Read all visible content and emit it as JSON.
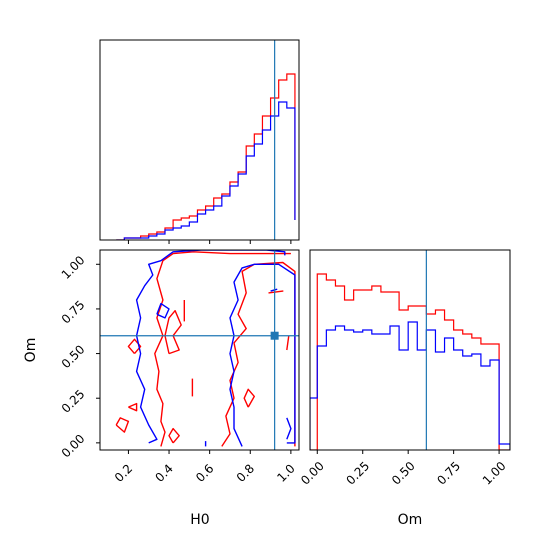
{
  "chart_data": {
    "type": "corner",
    "parameters": [
      "H0",
      "Om"
    ],
    "truth": {
      "H0": 0.92,
      "Om": 0.6
    },
    "colors": {
      "red": "#ff0000",
      "blue": "#0000ff",
      "truth": "#1f77b4"
    },
    "panels": [
      {
        "id": "hist-H0",
        "type": "step-histogram",
        "xlim": [
          0.06,
          1.04
        ],
        "ylim": [
          0,
          100
        ],
        "xticks": [
          0.2,
          0.4,
          0.6,
          0.8,
          1.0
        ],
        "yticks": [],
        "bin_edges": [
          0.14,
          0.18,
          0.22,
          0.26,
          0.3,
          0.34,
          0.38,
          0.42,
          0.46,
          0.5,
          0.54,
          0.58,
          0.62,
          0.66,
          0.7,
          0.74,
          0.78,
          0.82,
          0.86,
          0.9,
          0.94,
          0.98,
          1.02
        ],
        "series": [
          {
            "name": "red",
            "color": "#ff0000",
            "values": [
              0,
              1,
              1,
              2,
              3,
              4,
              6,
              10,
              11,
              12,
              15,
              17,
              21,
              23,
              29,
              34,
              47,
              53,
              62,
              71,
              80,
              83,
              10
            ]
          },
          {
            "name": "blue",
            "color": "#0000ff",
            "values": [
              0,
              1,
              1,
              1,
              2,
              3,
              5,
              6,
              7,
              9,
              13,
              15,
              17,
              22,
              27,
              33,
              42,
              48,
              55,
              62,
              69,
              66,
              10
            ]
          }
        ],
        "truth_x": 0.92
      },
      {
        "id": "hist-Om",
        "type": "step-histogram",
        "xlim": [
          -0.04,
          1.06
        ],
        "ylim": [
          0,
          100
        ],
        "xticks": [
          0.0,
          0.25,
          0.5,
          0.75,
          1.0
        ],
        "xtick_labels": [
          "0.00",
          "0.25",
          "0.50",
          "0.75",
          "1.00"
        ],
        "xlabel": "Om",
        "bin_edges": [
          -0.04,
          0.0,
          0.05,
          0.1,
          0.15,
          0.2,
          0.25,
          0.3,
          0.35,
          0.4,
          0.45,
          0.5,
          0.55,
          0.6,
          0.65,
          0.7,
          0.75,
          0.8,
          0.85,
          0.9,
          0.95,
          1.0,
          1.06
        ],
        "series": [
          {
            "name": "red",
            "color": "#ff0000",
            "values": [
              0,
              88,
              85,
              82,
              75,
              80,
              80,
              82,
              79,
              79,
              70,
              72,
              72,
              68,
              70,
              65,
              60,
              58,
              56,
              53,
              53,
              0
            ]
          },
          {
            "name": "blue",
            "color": "#0000ff",
            "values": [
              26,
              52,
              60,
              62,
              60,
              59,
              60,
              58,
              58,
              62,
              50,
              64,
              50,
              60,
              49,
              56,
              50,
              47,
              48,
              42,
              45,
              3
            ]
          }
        ],
        "truth_x": 0.6
      },
      {
        "id": "contour-H0-Om",
        "type": "contour",
        "xlim": [
          0.06,
          1.04
        ],
        "ylim": [
          -0.04,
          1.08
        ],
        "xticks": [
          0.2,
          0.4,
          0.6,
          0.8,
          1.0
        ],
        "xtick_labels": [
          "0.2",
          "0.4",
          "0.6",
          "0.8",
          "1.0"
        ],
        "yticks": [
          0.0,
          0.25,
          0.5,
          0.75,
          1.0
        ],
        "ytick_labels": [
          "0.00",
          "0.25",
          "0.50",
          "0.75",
          "1.00"
        ],
        "xlabel": "H0",
        "ylabel": "Om",
        "truth": [
          0.92,
          0.6
        ],
        "series": [
          {
            "name": "red",
            "color": "#ff0000",
            "paths": [
              [
                [
                  0.36,
                  -0.02
                ],
                [
                  0.38,
                  0.06
                ],
                [
                  0.36,
                  0.12
                ],
                [
                  0.37,
                  0.22
                ],
                [
                  0.34,
                  0.3
                ],
                [
                  0.35,
                  0.4
                ],
                [
                  0.33,
                  0.5
                ],
                [
                  0.37,
                  0.6
                ],
                [
                  0.34,
                  0.7
                ],
                [
                  0.37,
                  0.8
                ],
                [
                  0.34,
                  0.92
                ],
                [
                  0.37,
                  1.02
                ],
                [
                  0.42,
                  1.06
                ],
                [
                  0.52,
                  1.07
                ],
                [
                  0.7,
                  1.06
                ],
                [
                  0.86,
                  1.06
                ],
                [
                  1.0,
                  1.06
                ]
              ],
              [
                [
                  0.66,
                  -0.02
                ],
                [
                  0.7,
                  0.05
                ],
                [
                  0.68,
                  0.15
                ],
                [
                  0.72,
                  0.25
                ],
                [
                  0.7,
                  0.35
                ],
                [
                  0.74,
                  0.45
                ],
                [
                  0.72,
                  0.56
                ],
                [
                  0.78,
                  0.64
                ],
                [
                  0.74,
                  0.72
                ],
                [
                  0.78,
                  0.84
                ],
                [
                  0.76,
                  0.96
                ],
                [
                  0.82,
                  1.0
                ],
                [
                  0.96,
                  1.01
                ],
                [
                  1.02,
                  0.96
                ],
                [
                  1.02,
                  -0.02
                ]
              ],
              [
                [
                  0.4,
                  0.5
                ],
                [
                  0.45,
                  0.52
                ],
                [
                  0.42,
                  0.6
                ],
                [
                  0.46,
                  0.66
                ],
                [
                  0.43,
                  0.74
                ],
                [
                  0.4,
                  0.7
                ],
                [
                  0.38,
                  0.6
                ],
                [
                  0.4,
                  0.5
                ]
              ],
              [
                [
                  0.14,
                  0.1
                ],
                [
                  0.18,
                  0.06
                ],
                [
                  0.2,
                  0.12
                ],
                [
                  0.16,
                  0.14
                ],
                [
                  0.14,
                  0.1
                ]
              ],
              [
                [
                  0.2,
                  0.2
                ],
                [
                  0.24,
                  0.18
                ],
                [
                  0.24,
                  0.22
                ],
                [
                  0.2,
                  0.2
                ]
              ],
              [
                [
                  0.23,
                  0.5
                ],
                [
                  0.26,
                  0.54
                ],
                [
                  0.23,
                  0.58
                ],
                [
                  0.2,
                  0.54
                ],
                [
                  0.23,
                  0.5
                ]
              ],
              [
                [
                  0.42,
                  0.0
                ],
                [
                  0.45,
                  0.04
                ],
                [
                  0.42,
                  0.08
                ],
                [
                  0.4,
                  0.04
                ],
                [
                  0.42,
                  0.0
                ]
              ],
              [
                [
                  0.515,
                  0.26
                ],
                [
                  0.515,
                  0.36
                ]
              ],
              [
                [
                  0.475,
                  0.68
                ],
                [
                  0.475,
                  0.8
                ]
              ],
              [
                [
                  0.89,
                  0.84
                ],
                [
                  0.96,
                  0.85
                ],
                [
                  0.89,
                  0.84
                ]
              ],
              [
                [
                  0.98,
                  0.52
                ],
                [
                  0.99,
                  0.6
                ]
              ],
              [
                [
                  0.79,
                  0.2
                ],
                [
                  0.82,
                  0.26
                ],
                [
                  0.79,
                  0.3
                ],
                [
                  0.77,
                  0.25
                ],
                [
                  0.79,
                  0.2
                ]
              ]
            ]
          },
          {
            "name": "blue",
            "color": "#0000ff",
            "paths": [
              [
                [
                  0.3,
                  0.0
                ],
                [
                  0.34,
                  0.02
                ],
                [
                  0.3,
                  0.1
                ],
                [
                  0.26,
                  0.2
                ],
                [
                  0.28,
                  0.3
                ],
                [
                  0.24,
                  0.4
                ],
                [
                  0.26,
                  0.5
                ],
                [
                  0.24,
                  0.6
                ],
                [
                  0.26,
                  0.7
                ],
                [
                  0.24,
                  0.8
                ],
                [
                  0.28,
                  0.88
                ],
                [
                  0.32,
                  0.94
                ],
                [
                  0.3,
                  1.0
                ],
                [
                  0.36,
                  1.02
                ],
                [
                  0.42,
                  1.07
                ],
                [
                  0.56,
                  1.08
                ],
                [
                  0.72,
                  1.08
                ],
                [
                  0.88,
                  1.08
                ],
                [
                  0.97,
                  1.07
                ],
                [
                  0.97,
                  1.05
                ]
              ],
              [
                [
                  0.76,
                  -0.02
                ],
                [
                  0.72,
                  0.08
                ],
                [
                  0.72,
                  0.2
                ],
                [
                  0.7,
                  0.3
                ],
                [
                  0.72,
                  0.4
                ],
                [
                  0.7,
                  0.5
                ],
                [
                  0.72,
                  0.6
                ],
                [
                  0.7,
                  0.7
                ],
                [
                  0.74,
                  0.8
                ],
                [
                  0.72,
                  0.9
                ],
                [
                  0.76,
                  0.98
                ],
                [
                  0.82,
                  1.0
                ],
                [
                  0.94,
                  1.0
                ],
                [
                  1.02,
                  0.94
                ],
                [
                  1.02,
                  0.0
                ],
                [
                  0.98,
                  0.0
                ]
              ],
              [
                [
                  0.34,
                  0.72
                ],
                [
                  0.38,
                  0.7
                ],
                [
                  0.4,
                  0.75
                ],
                [
                  0.36,
                  0.78
                ],
                [
                  0.34,
                  0.72
                ]
              ],
              [
                [
                  0.9,
                  0.85
                ],
                [
                  0.93,
                  0.86
                ],
                [
                  0.9,
                  0.85
                ]
              ],
              [
                [
                  0.98,
                  0.02
                ],
                [
                  1.0,
                  0.08
                ],
                [
                  0.98,
                  0.14
                ]
              ],
              [
                [
                  0.58,
                  -0.02
                ],
                [
                  0.58,
                  0.01
                ]
              ]
            ]
          }
        ]
      }
    ]
  }
}
